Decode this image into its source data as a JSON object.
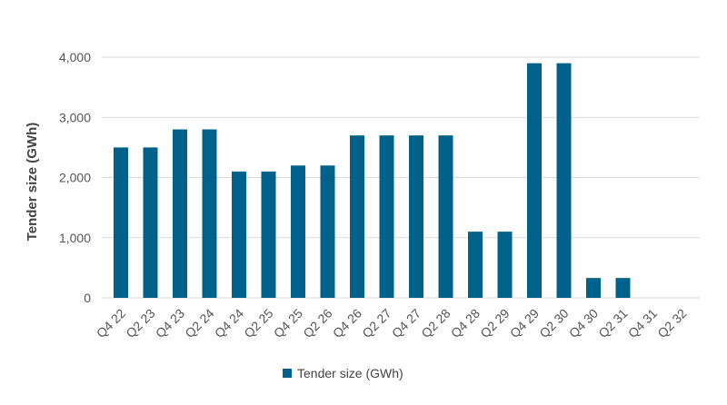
{
  "chart_data": {
    "type": "bar",
    "title": "",
    "xlabel": "",
    "ylabel": "Tender size (GWh)",
    "categories": [
      "Q4 22",
      "Q2 23",
      "Q4 23",
      "Q2 24",
      "Q4 24",
      "Q2 25",
      "Q4 25",
      "Q2 26",
      "Q4 26",
      "Q2 27",
      "Q4 27",
      "Q2 28",
      "Q4 28",
      "Q2 29",
      "Q4 29",
      "Q2 30",
      "Q4 30",
      "Q2 31",
      "Q4 31",
      "Q2 32"
    ],
    "series": [
      {
        "name": "Tender size (GWh)",
        "color": "#00628b",
        "values": [
          2500,
          2500,
          2800,
          2800,
          2100,
          2100,
          2200,
          2200,
          2700,
          2700,
          2700,
          2700,
          1100,
          1100,
          3900,
          3900,
          330,
          330,
          0,
          0
        ]
      }
    ],
    "ylim": [
      0,
      4000
    ],
    "yticks": [
      "0",
      "1,000",
      "2,000",
      "3,000",
      "4,000"
    ],
    "grid": true,
    "legend_position": "bottom"
  }
}
